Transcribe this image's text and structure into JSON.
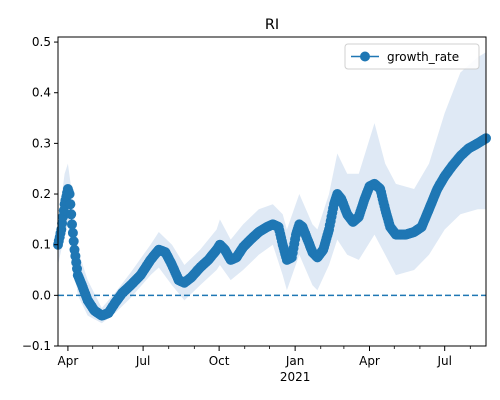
{
  "chart_data": {
    "type": "line",
    "title": "RI",
    "xlabel": "",
    "ylabel": "",
    "x_range": [
      "2020-03-20",
      "2021-08-20"
    ],
    "ylim": [
      -0.1,
      0.51
    ],
    "yticks": [
      -0.1,
      0.0,
      0.1,
      0.2,
      0.3,
      0.4,
      0.5
    ],
    "ytick_labels": [
      "−0.1",
      "0.0",
      "0.1",
      "0.2",
      "0.3",
      "0.4",
      "0.5"
    ],
    "xticks": [
      {
        "date": "2020-04-01",
        "label": "Apr",
        "sublabel": ""
      },
      {
        "date": "2020-07-01",
        "label": "Jul",
        "sublabel": ""
      },
      {
        "date": "2020-10-01",
        "label": "Oct",
        "sublabel": ""
      },
      {
        "date": "2021-01-01",
        "label": "Jan",
        "sublabel": "2021"
      },
      {
        "date": "2021-04-01",
        "label": "Apr",
        "sublabel": ""
      },
      {
        "date": "2021-07-01",
        "label": "Jul",
        "sublabel": ""
      }
    ],
    "minor_xticks": [
      "2020-05-01",
      "2020-06-01",
      "2020-08-01",
      "2020-09-01",
      "2020-11-01",
      "2020-12-01",
      "2021-02-01",
      "2021-03-01",
      "2021-05-01",
      "2021-06-01",
      "2021-08-01"
    ],
    "reference_line": {
      "y": 0.0,
      "style": "dashed",
      "color": "#1f77b4"
    },
    "legend": {
      "position": "top-right",
      "entries": [
        "growth_rate"
      ]
    },
    "colors": {
      "series": "#1f77b4",
      "band": "#dfe9f5"
    },
    "grid": false,
    "series": [
      {
        "name": "growth_rate",
        "marker": "circle",
        "points": [
          [
            "2020-03-20",
            0.1
          ],
          [
            "2020-03-24",
            0.13
          ],
          [
            "2020-03-28",
            0.18
          ],
          [
            "2020-04-01",
            0.21
          ],
          [
            "2020-04-03",
            0.2
          ],
          [
            "2020-04-06",
            0.14
          ],
          [
            "2020-04-09",
            0.09
          ],
          [
            "2020-04-13",
            0.04
          ],
          [
            "2020-04-18",
            0.02
          ],
          [
            "2020-04-25",
            -0.01
          ],
          [
            "2020-05-03",
            -0.03
          ],
          [
            "2020-05-12",
            -0.04
          ],
          [
            "2020-05-20",
            -0.035
          ],
          [
            "2020-05-28",
            -0.015
          ],
          [
            "2020-06-06",
            0.005
          ],
          [
            "2020-06-16",
            0.02
          ],
          [
            "2020-06-28",
            0.04
          ],
          [
            "2020-07-10",
            0.07
          ],
          [
            "2020-07-20",
            0.09
          ],
          [
            "2020-07-28",
            0.085
          ],
          [
            "2020-08-05",
            0.06
          ],
          [
            "2020-08-13",
            0.03
          ],
          [
            "2020-08-20",
            0.025
          ],
          [
            "2020-08-28",
            0.035
          ],
          [
            "2020-09-08",
            0.055
          ],
          [
            "2020-09-18",
            0.07
          ],
          [
            "2020-09-28",
            0.09
          ],
          [
            "2020-10-02",
            0.1
          ],
          [
            "2020-10-08",
            0.09
          ],
          [
            "2020-10-15",
            0.07
          ],
          [
            "2020-10-22",
            0.075
          ],
          [
            "2020-10-30",
            0.095
          ],
          [
            "2020-11-08",
            0.11
          ],
          [
            "2020-11-18",
            0.125
          ],
          [
            "2020-11-28",
            0.135
          ],
          [
            "2020-12-05",
            0.14
          ],
          [
            "2020-12-12",
            0.135
          ],
          [
            "2020-12-17",
            0.1
          ],
          [
            "2020-12-22",
            0.07
          ],
          [
            "2020-12-28",
            0.075
          ],
          [
            "2021-01-02",
            0.12
          ],
          [
            "2021-01-06",
            0.14
          ],
          [
            "2021-01-10",
            0.135
          ],
          [
            "2021-01-16",
            0.11
          ],
          [
            "2021-01-22",
            0.085
          ],
          [
            "2021-01-28",
            0.075
          ],
          [
            "2021-02-04",
            0.09
          ],
          [
            "2021-02-11",
            0.13
          ],
          [
            "2021-02-17",
            0.18
          ],
          [
            "2021-02-21",
            0.2
          ],
          [
            "2021-02-26",
            0.19
          ],
          [
            "2021-03-05",
            0.16
          ],
          [
            "2021-03-12",
            0.145
          ],
          [
            "2021-03-19",
            0.155
          ],
          [
            "2021-03-26",
            0.19
          ],
          [
            "2021-04-01",
            0.215
          ],
          [
            "2021-04-07",
            0.22
          ],
          [
            "2021-04-14",
            0.21
          ],
          [
            "2021-04-20",
            0.17
          ],
          [
            "2021-04-26",
            0.135
          ],
          [
            "2021-05-03",
            0.12
          ],
          [
            "2021-05-15",
            0.12
          ],
          [
            "2021-05-25",
            0.125
          ],
          [
            "2021-06-03",
            0.135
          ],
          [
            "2021-06-12",
            0.17
          ],
          [
            "2021-06-22",
            0.21
          ],
          [
            "2021-07-01",
            0.235
          ],
          [
            "2021-07-10",
            0.255
          ],
          [
            "2021-07-20",
            0.275
          ],
          [
            "2021-07-30",
            0.29
          ],
          [
            "2021-08-10",
            0.3
          ],
          [
            "2021-08-20",
            0.31
          ]
        ],
        "band": [
          [
            "2020-03-20",
            0.06,
            0.14
          ],
          [
            "2020-03-28",
            0.12,
            0.24
          ],
          [
            "2020-04-01",
            0.14,
            0.26
          ],
          [
            "2020-04-06",
            0.09,
            0.2
          ],
          [
            "2020-04-13",
            0.0,
            0.09
          ],
          [
            "2020-04-25",
            -0.04,
            0.03
          ],
          [
            "2020-05-12",
            -0.055,
            -0.025
          ],
          [
            "2020-05-28",
            -0.035,
            0.005
          ],
          [
            "2020-06-16",
            -0.005,
            0.045
          ],
          [
            "2020-07-10",
            0.04,
            0.1
          ],
          [
            "2020-07-20",
            0.055,
            0.125
          ],
          [
            "2020-08-05",
            0.02,
            0.1
          ],
          [
            "2020-08-20",
            -0.01,
            0.06
          ],
          [
            "2020-09-08",
            0.02,
            0.09
          ],
          [
            "2020-09-28",
            0.05,
            0.13
          ],
          [
            "2020-10-02",
            0.06,
            0.15
          ],
          [
            "2020-10-15",
            0.03,
            0.11
          ],
          [
            "2020-10-30",
            0.05,
            0.14
          ],
          [
            "2020-11-18",
            0.08,
            0.17
          ],
          [
            "2020-12-05",
            0.1,
            0.18
          ],
          [
            "2020-12-17",
            0.04,
            0.16
          ],
          [
            "2020-12-22",
            0.01,
            0.13
          ],
          [
            "2021-01-06",
            0.08,
            0.2
          ],
          [
            "2021-01-22",
            0.02,
            0.14
          ],
          [
            "2021-01-28",
            0.01,
            0.13
          ],
          [
            "2021-02-11",
            0.06,
            0.2
          ],
          [
            "2021-02-21",
            0.11,
            0.28
          ],
          [
            "2021-03-05",
            0.08,
            0.24
          ],
          [
            "2021-03-19",
            0.07,
            0.24
          ],
          [
            "2021-04-07",
            0.12,
            0.34
          ],
          [
            "2021-04-20",
            0.08,
            0.26
          ],
          [
            "2021-05-03",
            0.04,
            0.22
          ],
          [
            "2021-05-25",
            0.05,
            0.21
          ],
          [
            "2021-06-12",
            0.08,
            0.26
          ],
          [
            "2021-07-01",
            0.13,
            0.36
          ],
          [
            "2021-07-20",
            0.16,
            0.44
          ],
          [
            "2021-08-10",
            0.17,
            0.47
          ],
          [
            "2021-08-20",
            0.17,
            0.48
          ]
        ]
      }
    ]
  }
}
